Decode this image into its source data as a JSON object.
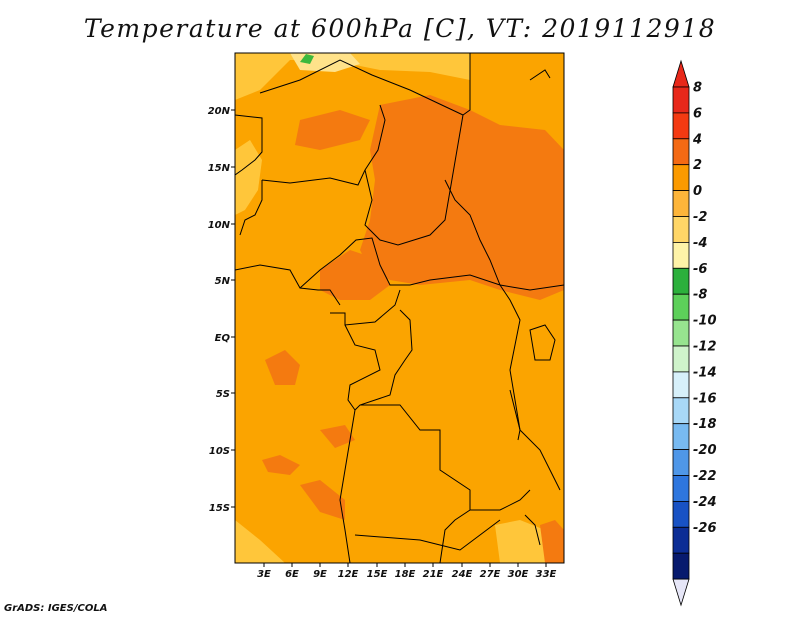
{
  "title": "Temperature at 600hPa [C], VT: 2019112918",
  "credit": "GrADS: IGES/COLA",
  "map": {
    "lat_labels": [
      "20N",
      "15N",
      "10N",
      "5N",
      "EQ",
      "5S",
      "10S",
      "15S"
    ],
    "lon_labels": [
      "3E",
      "6E",
      "9E",
      "12E",
      "15E",
      "18E",
      "21E",
      "24E",
      "27E",
      "30E",
      "33E"
    ],
    "fill_colors": {
      "base": "#FBA400",
      "warm": "#F47A10",
      "hot": "#EE5C10",
      "light": "#FFC63A",
      "pale": "#FFE28A",
      "green": "#3CB83C",
      "land_line": "#000000"
    }
  },
  "colorbar": {
    "labels": [
      "8",
      "6",
      "4",
      "2",
      "0",
      "-2",
      "-4",
      "-6",
      "-8",
      "-10",
      "-12",
      "-14",
      "-16",
      "-18",
      "-20",
      "-22",
      "-24",
      "-26"
    ],
    "colors": [
      "#E8281A",
      "#F43A12",
      "#F46A14",
      "#FB9A00",
      "#FDB53A",
      "#FFD667",
      "#FEF3A8",
      "#2CB03C",
      "#5DD05A",
      "#97E48F",
      "#CFF3CB",
      "#D7F0FA",
      "#A8D8F7",
      "#78BAF1",
      "#4F97E8",
      "#2E76DE",
      "#1852C4",
      "#0C2D95",
      "#071A6E"
    ],
    "top_arrow_color": "#E8281A",
    "bottom_arrow_color": "#E6E6F7"
  }
}
